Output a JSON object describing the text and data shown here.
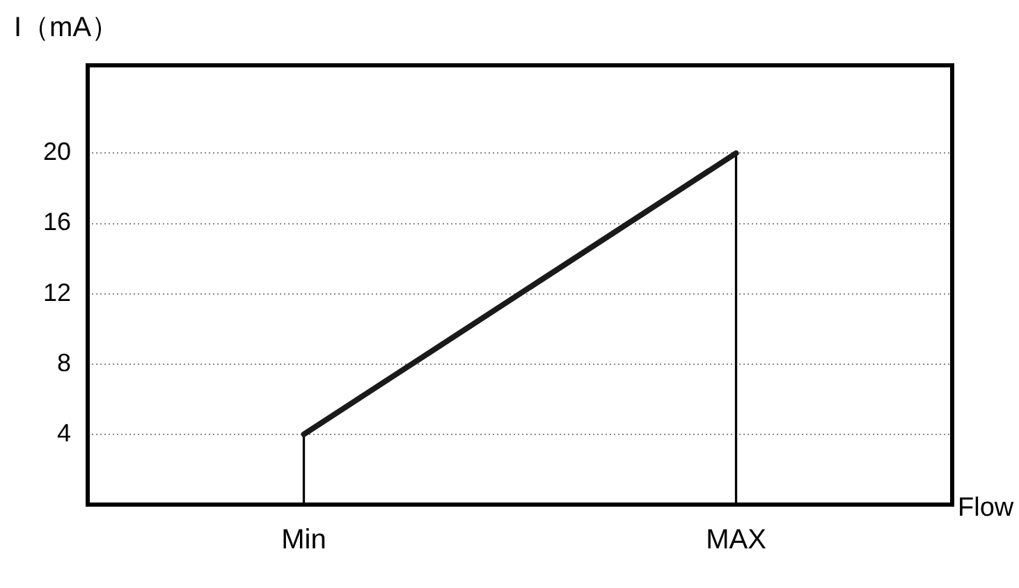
{
  "chart_data": {
    "type": "line",
    "xlabel": "Flow",
    "ylabel": "I（mA）",
    "categories": [
      "Min",
      "MAX"
    ],
    "series": [
      {
        "color": "#1a1a1a",
        "values": [
          4,
          20
        ]
      },
      {
        "type": "bar",
        "color": "#000000",
        "values": [
          4,
          20
        ]
      }
    ],
    "ylim": [
      0,
      25
    ],
    "yticks": [
      4,
      8,
      12,
      16,
      20
    ],
    "grid": "y",
    "legend": false,
    "marker": "none",
    "line_style": "solid"
  }
}
